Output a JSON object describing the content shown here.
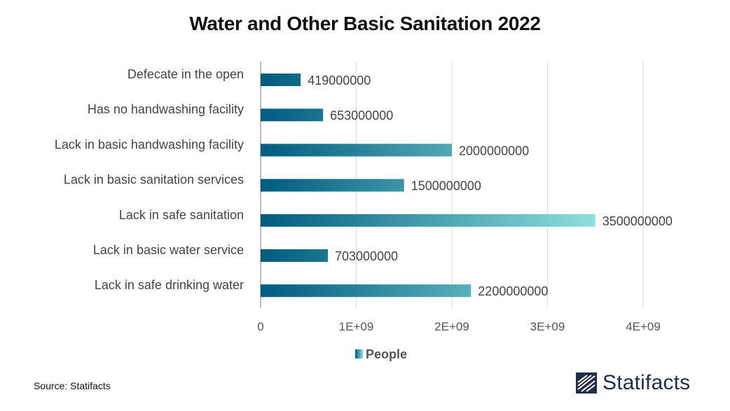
{
  "chart_data": {
    "type": "bar",
    "orientation": "horizontal",
    "title": "Water and Other Basic Sanitation 2022",
    "categories": [
      "Defecate in the open",
      "Has no handwashing facility",
      "Lack in basic handwashing facility",
      "Lack in basic sanitation services",
      "Lack in safe sanitation",
      "Lack in basic water service",
      "Lack in safe drinking water"
    ],
    "series": [
      {
        "name": "People",
        "values": [
          419000000,
          653000000,
          2000000000,
          1500000000,
          3500000000,
          703000000,
          2200000000
        ],
        "value_labels": [
          "419000000",
          "653000000",
          "2000000000",
          "1500000000",
          "3500000000",
          "703000000",
          "2200000000"
        ]
      }
    ],
    "xlim": [
      0,
      4000000000
    ],
    "xticks": [
      0,
      1000000000,
      2000000000,
      3000000000,
      4000000000
    ],
    "xtick_labels": [
      "0",
      "1E+09",
      "2E+09",
      "3E+09",
      "4E+09"
    ],
    "grid": "vertical",
    "legend": "bottom-center",
    "colors": {
      "bar_start": "#005c7f",
      "bar_end": "#8ee0dc",
      "grid": "#d9d9d9",
      "axis": "#a6a6a6"
    }
  },
  "source": "Source: Statifacts",
  "brand": {
    "name": "Statifacts",
    "icon": "statifacts-logo-icon"
  }
}
